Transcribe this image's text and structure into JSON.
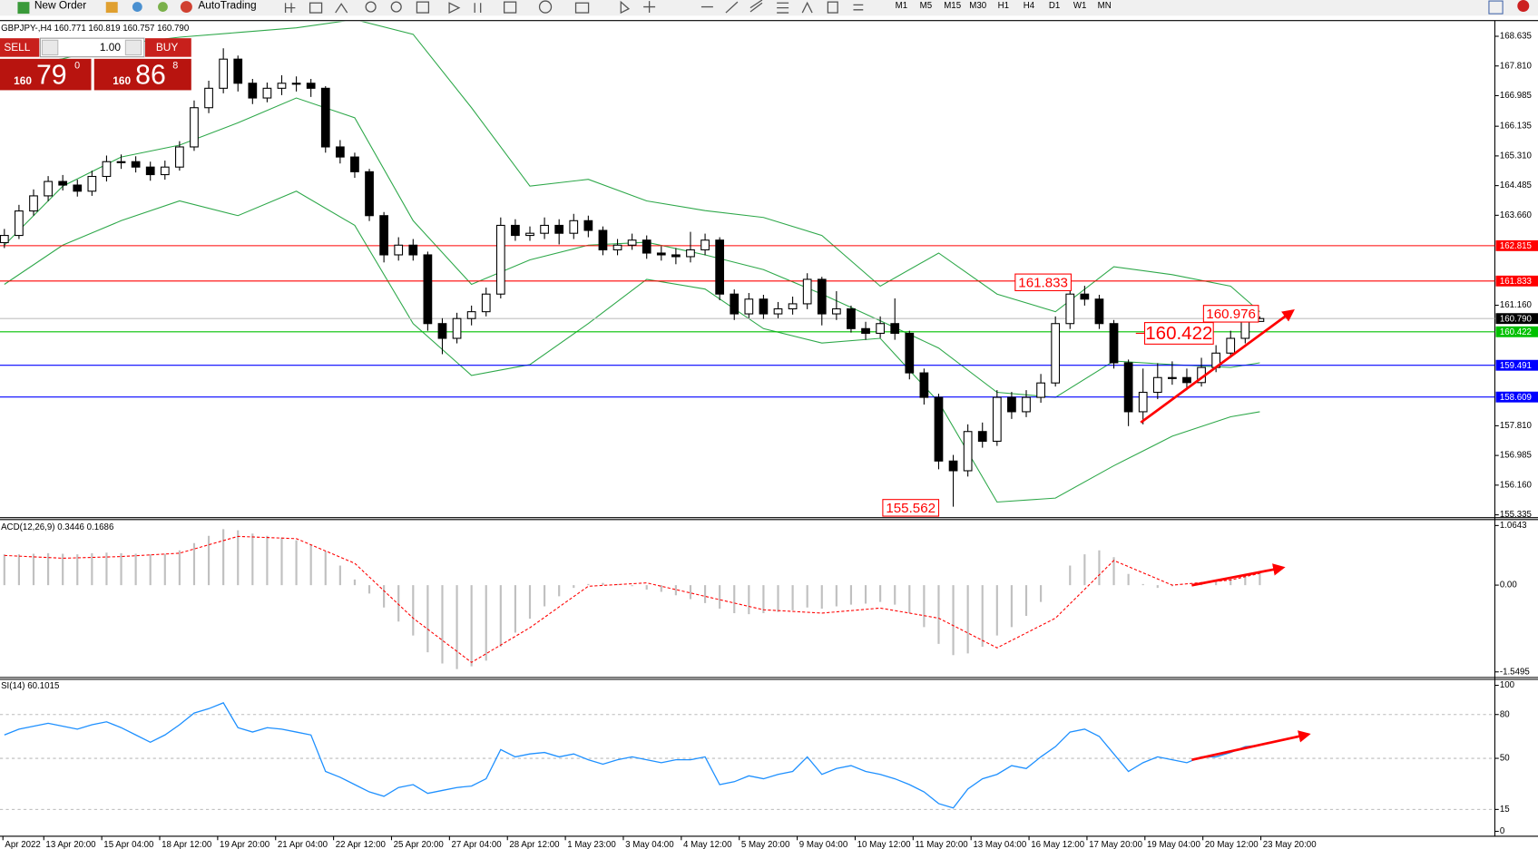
{
  "toolbar": {
    "new_order": "New Order",
    "autotrading": "AutoTrading",
    "timeframes": [
      "M1",
      "M5",
      "M15",
      "M30",
      "H1",
      "H4",
      "D1",
      "W1",
      "MN"
    ]
  },
  "trade_panel": {
    "sell": "SELL",
    "lots": "1.00",
    "buy": "BUY",
    "sell_big": "160",
    "sell_main": "79",
    "sell_sup": "0",
    "buy_big": "160",
    "buy_main": "86",
    "buy_sup": "8"
  },
  "chart_data": [
    {
      "type": "candlestick",
      "title": "GBPJPY-,H4 160.771 160.819 160.757 160.790",
      "xlim": [
        -0.3,
        102.1
      ],
      "ylim": [
        155.284,
        169.044
      ],
      "yticks": [
        168.635,
        {
          "value": 167.81,
          "label": "167.810"
        },
        166.985,
        166.135,
        {
          "value": 165.31,
          "label": "165.310"
        },
        164.485,
        {
          "value": 163.66,
          "label": "163.660"
        },
        {
          "value": 161.16,
          "label": "161.160"
        },
        {
          "value": 157.81,
          "label": "157.810"
        },
        156.985,
        {
          "value": 156.16,
          "label": "156.160"
        },
        155.335
      ],
      "open": [
        162.9,
        163.1,
        163.78,
        164.2,
        164.6,
        164.5,
        164.33,
        164.74,
        165.15,
        165.15,
        165.0,
        164.79,
        165.0,
        165.56,
        166.65,
        167.19,
        168.0,
        167.33,
        166.92,
        167.19,
        167.33,
        167.33,
        167.19,
        165.56,
        165.28,
        164.87,
        163.65,
        162.56,
        162.83,
        162.56,
        160.65,
        160.24,
        160.79,
        160.98,
        161.47,
        163.38,
        163.1,
        163.16,
        163.38,
        163.16,
        163.51,
        163.24,
        162.7,
        162.83,
        162.97,
        162.61,
        162.56,
        162.51,
        162.7,
        162.97,
        161.47,
        160.92,
        161.33,
        160.92,
        161.06,
        161.2,
        161.88,
        160.92,
        161.06,
        160.51,
        160.38,
        160.65,
        160.38,
        159.28,
        158.6,
        156.83,
        156.56,
        157.65,
        157.38,
        158.6,
        158.2,
        158.6,
        159.0,
        160.65,
        161.47,
        161.33,
        160.65,
        159.56,
        158.2,
        158.74,
        159.15,
        159.15,
        159.01,
        159.43,
        159.83,
        160.24,
        160.71
      ],
      "high": [
        163.28,
        163.95,
        164.38,
        164.75,
        164.78,
        164.65,
        164.9,
        165.32,
        165.35,
        165.3,
        165.15,
        165.18,
        165.72,
        166.85,
        167.4,
        168.3,
        168.1,
        167.45,
        167.35,
        167.55,
        167.52,
        167.45,
        167.25,
        165.75,
        165.4,
        164.95,
        163.75,
        163.05,
        163.0,
        162.65,
        160.8,
        160.95,
        161.15,
        161.65,
        163.6,
        163.55,
        163.35,
        163.6,
        163.55,
        163.7,
        163.65,
        163.35,
        163.0,
        163.15,
        163.1,
        162.8,
        162.75,
        163.2,
        163.15,
        163.05,
        161.6,
        161.5,
        161.45,
        161.25,
        161.4,
        162.05,
        161.95,
        161.55,
        161.15,
        160.7,
        160.85,
        161.35,
        160.45,
        159.4,
        158.7,
        157.0,
        157.85,
        157.9,
        158.8,
        158.75,
        158.8,
        159.25,
        160.85,
        161.833,
        161.7,
        161.45,
        160.75,
        159.65,
        159.4,
        159.55,
        159.6,
        159.4,
        159.7,
        160.05,
        160.45,
        160.976,
        160.85
      ],
      "low": [
        162.75,
        163.0,
        163.65,
        164.05,
        164.35,
        164.18,
        164.2,
        164.6,
        164.95,
        164.85,
        164.62,
        164.65,
        164.9,
        165.45,
        166.5,
        167.05,
        167.1,
        166.75,
        166.8,
        167.0,
        167.1,
        166.95,
        165.4,
        165.1,
        164.7,
        163.5,
        162.35,
        162.4,
        162.4,
        160.45,
        159.8,
        160.1,
        160.6,
        160.85,
        161.35,
        162.95,
        162.95,
        163.0,
        162.85,
        163.0,
        163.05,
        162.55,
        162.55,
        162.7,
        162.45,
        162.4,
        162.3,
        162.35,
        162.55,
        161.3,
        160.75,
        160.8,
        160.78,
        160.8,
        160.9,
        161.05,
        160.6,
        160.75,
        160.4,
        160.2,
        160.25,
        160.2,
        159.1,
        158.4,
        156.6,
        155.562,
        156.4,
        157.2,
        157.25,
        158.0,
        158.05,
        158.45,
        158.9,
        160.5,
        161.15,
        160.5,
        159.4,
        157.8,
        157.85,
        158.55,
        158.95,
        158.8,
        158.9,
        159.3,
        159.7,
        160.1,
        160.7
      ],
      "close": [
        163.1,
        163.78,
        164.2,
        164.6,
        164.5,
        164.33,
        164.74,
        165.15,
        165.15,
        165.0,
        164.79,
        165.0,
        165.56,
        166.65,
        167.19,
        168.0,
        167.33,
        166.92,
        167.19,
        167.33,
        167.33,
        167.19,
        165.56,
        165.28,
        164.87,
        163.65,
        162.56,
        162.83,
        162.56,
        160.65,
        160.24,
        160.79,
        160.98,
        161.47,
        163.38,
        163.1,
        163.16,
        163.38,
        163.16,
        163.51,
        163.24,
        162.7,
        162.83,
        162.97,
        162.61,
        162.56,
        162.51,
        162.7,
        162.97,
        161.47,
        160.92,
        161.33,
        160.92,
        161.06,
        161.2,
        161.88,
        160.92,
        161.06,
        160.51,
        160.38,
        160.65,
        160.38,
        159.28,
        158.6,
        156.83,
        156.56,
        157.65,
        157.38,
        158.6,
        158.2,
        158.6,
        159.0,
        160.65,
        161.47,
        161.33,
        160.65,
        159.56,
        158.2,
        158.74,
        159.15,
        159.15,
        159.01,
        159.43,
        159.83,
        160.24,
        160.71,
        160.79
      ],
      "bollinger": {
        "color": "#2ea84a",
        "x": [
          0,
          4,
          8,
          12,
          16,
          20,
          24,
          28,
          32,
          36,
          40,
          44,
          48,
          52,
          56,
          60,
          64,
          68,
          72,
          76,
          80,
          84,
          86
        ],
        "upper": [
          167.74,
          168.01,
          168.42,
          168.61,
          168.74,
          168.87,
          169.1,
          168.69,
          166.65,
          164.47,
          164.66,
          164.06,
          163.79,
          163.6,
          163.1,
          161.69,
          162.61,
          161.47,
          160.98,
          162.23,
          162.01,
          161.69,
          160.98
        ],
        "middle": [
          162.83,
          164.47,
          165.28,
          165.61,
          166.23,
          166.92,
          166.37,
          163.51,
          161.74,
          162.42,
          162.83,
          162.91,
          162.56,
          162.15,
          161.47,
          160.73,
          159.97,
          158.74,
          158.6,
          159.61,
          159.51,
          159.43,
          159.56
        ],
        "lower": [
          161.74,
          162.83,
          163.51,
          164.06,
          163.65,
          164.33,
          163.38,
          160.65,
          159.21,
          159.51,
          160.65,
          161.88,
          161.61,
          160.51,
          160.11,
          160.24,
          158.47,
          155.69,
          155.8,
          156.7,
          157.52,
          158.06,
          158.2
        ]
      },
      "levels": [
        {
          "value": 162.815,
          "color": "#ff0000"
        },
        {
          "value": 161.833,
          "color": "#ff0000"
        },
        {
          "value": 160.422,
          "color": "#00c000"
        },
        {
          "value": 159.491,
          "color": "#0000ff"
        },
        {
          "value": 158.609,
          "color": "#0000ff"
        }
      ],
      "bid": {
        "value": 160.79,
        "label": "160.790"
      },
      "price_labels": [
        161.833,
        155.562,
        160.422,
        160.976
      ]
    },
    {
      "type": "macd",
      "title": "ACD(12,26,9) 0.3446 0.1686",
      "xlim": [
        -0.3,
        102.1
      ],
      "ylim": [
        -1.631,
        1.1525
      ],
      "yticks": [
        1.0643,
        {
          "value": 0,
          "label": "0.00"
        },
        -1.5495
      ],
      "histogram": [
        0.55,
        0.55,
        0.56,
        0.57,
        0.56,
        0.55,
        0.57,
        0.58,
        0.57,
        0.56,
        0.55,
        0.56,
        0.62,
        0.75,
        0.88,
        1.0,
        0.98,
        0.92,
        0.88,
        0.85,
        0.8,
        0.72,
        0.6,
        0.35,
        0.1,
        -0.15,
        -0.4,
        -0.65,
        -0.9,
        -1.2,
        -1.4,
        -1.5,
        -1.45,
        -1.35,
        -1.1,
        -0.85,
        -0.6,
        -0.38,
        -0.2,
        -0.05,
        0.02,
        0.04,
        0.02,
        -0.02,
        -0.08,
        -0.12,
        -0.18,
        -0.25,
        -0.32,
        -0.42,
        -0.5,
        -0.52,
        -0.5,
        -0.48,
        -0.45,
        -0.4,
        -0.42,
        -0.38,
        -0.35,
        -0.33,
        -0.3,
        -0.35,
        -0.5,
        -0.75,
        -1.05,
        -1.25,
        -1.22,
        -1.1,
        -0.9,
        -0.75,
        -0.55,
        -0.3,
        0.0,
        0.35,
        0.55,
        0.62,
        0.5,
        0.2,
        0.02,
        -0.05,
        -0.02,
        0.0,
        0.02,
        0.06,
        0.12,
        0.2,
        0.25
      ],
      "hist_color": "#c0c0c0",
      "signal": {
        "color": "#ff0000",
        "x": [
          0,
          4,
          8,
          12,
          16,
          20,
          24,
          28,
          32,
          36,
          40,
          44,
          48,
          52,
          56,
          60,
          64,
          68,
          72,
          76,
          80,
          84,
          86
        ],
        "values": [
          0.53,
          0.48,
          0.51,
          0.57,
          0.87,
          0.83,
          0.39,
          -0.59,
          -1.38,
          -0.76,
          -0.02,
          0.04,
          -0.2,
          -0.44,
          -0.5,
          -0.41,
          -0.59,
          -1.12,
          -0.59,
          0.44,
          0.0,
          0.09,
          0.21
        ]
      }
    },
    {
      "type": "line",
      "title": "SI(14) 60.1015",
      "xlim": [
        -0.3,
        102.1
      ],
      "ylim": [
        -2.7,
        104.05
      ],
      "yticks": [
        100,
        80,
        50,
        15,
        0
      ],
      "levels": [
        80,
        50,
        15
      ],
      "color": "#1e90ff",
      "values": [
        66,
        70,
        72,
        74,
        72,
        70,
        73,
        75,
        71,
        66,
        61,
        66,
        73,
        81,
        84,
        88,
        71,
        68,
        71,
        70,
        68,
        66,
        41,
        37,
        32,
        27,
        24,
        30,
        32,
        26,
        28,
        30,
        31,
        36,
        56,
        51,
        53,
        54,
        51,
        53,
        49,
        46,
        49,
        51,
        49,
        47,
        49,
        49,
        51,
        32,
        34,
        38,
        36,
        39,
        41,
        51,
        39,
        43,
        45,
        41,
        39,
        36,
        32,
        27,
        19,
        16,
        29,
        36,
        39,
        45,
        43,
        51,
        58,
        68,
        70,
        65,
        53,
        41,
        47,
        51,
        49,
        47,
        51,
        51,
        54,
        58,
        59
      ],
      "xticks": [
        {
          "value": -0.1,
          "label": "Apr 2022"
        },
        {
          "value": 2.7,
          "label": "13 Apr 20:00"
        },
        {
          "value": 6.67,
          "label": "15 Apr 04:00"
        },
        {
          "value": 10.64,
          "label": "18 Apr 12:00"
        },
        {
          "value": 14.61,
          "label": "19 Apr 20:00"
        },
        {
          "value": 18.58,
          "label": "21 Apr 04:00"
        },
        {
          "value": 22.55,
          "label": "22 Apr 12:00"
        },
        {
          "value": 26.52,
          "label": "25 Apr 20:00"
        },
        {
          "value": 30.49,
          "label": "27 Apr 04:00"
        },
        {
          "value": 34.46,
          "label": "28 Apr 12:00"
        },
        {
          "value": 38.43,
          "label": "1 May 23:00"
        },
        {
          "value": 42.4,
          "label": "3 May 04:00"
        },
        {
          "value": 46.37,
          "label": "4 May 12:00"
        },
        {
          "value": 50.34,
          "label": "5 May 20:00"
        },
        {
          "value": 54.31,
          "label": "9 May 04:00"
        },
        {
          "value": 58.28,
          "label": "10 May 12:00"
        },
        {
          "value": 62.25,
          "label": "11 May 20:00"
        },
        {
          "value": 66.22,
          "label": "13 May 04:00"
        },
        {
          "value": 70.19,
          "label": "16 May 12:00"
        },
        {
          "value": 74.16,
          "label": "17 May 20:00"
        },
        {
          "value": 78.13,
          "label": "19 May 04:00"
        },
        {
          "value": 82.1,
          "label": "20 May 12:00"
        },
        {
          "value": 86.07,
          "label": "23 May 20:00"
        }
      ]
    }
  ]
}
